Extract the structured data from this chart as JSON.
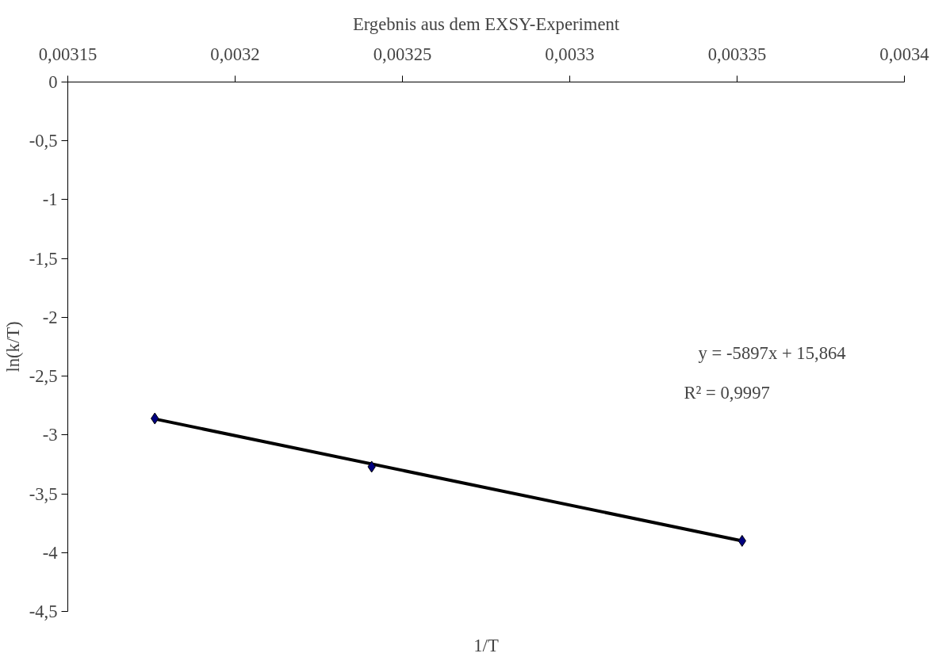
{
  "chart_data": {
    "type": "scatter",
    "title": "Ergebnis aus dem EXSY-Experiment",
    "xlabel": "1/T",
    "ylabel": "ln(k/T)",
    "annotations": [
      "y = -5897x + 15,864",
      "R² = 0,9997"
    ],
    "series": [
      {
        "color": "#000080",
        "marker": "diamond",
        "x": [
          0.003176,
          0.0032408,
          0.0033515
        ],
        "values": [
          -2.86,
          -3.27,
          -3.9
        ]
      },
      {
        "type": "line",
        "color": "#000000",
        "marker": "none",
        "x": [
          0.003176,
          0.0033515
        ],
        "values": [
          -2.864,
          -3.9
        ]
      }
    ],
    "xlim": [
      0.00315,
      0.0034
    ],
    "ylim": [
      -4.5,
      0
    ],
    "xticks": [
      {
        "value": 0.00315,
        "label": "0,00315"
      },
      {
        "value": 0.0032,
        "label": "0,0032"
      },
      {
        "value": 0.00325,
        "label": "0,00325"
      },
      {
        "value": 0.0033,
        "label": "0,0033"
      },
      {
        "value": 0.00335,
        "label": "0,00335"
      },
      {
        "value": 0.0034,
        "label": "0,0034"
      }
    ],
    "yticks": [
      0,
      {
        "value": -0.5,
        "label": "-0,5"
      },
      -1,
      {
        "value": -1.5,
        "label": "-1,5"
      },
      -2,
      {
        "value": -2.5,
        "label": "-2,5"
      },
      -3,
      {
        "value": -3.5,
        "label": "-3,5"
      },
      -4,
      {
        "value": -4.5,
        "label": "-4,5"
      }
    ],
    "grid": false
  }
}
